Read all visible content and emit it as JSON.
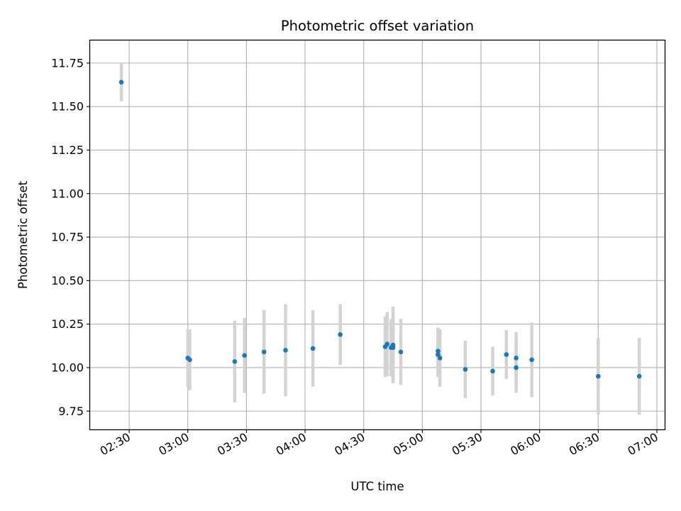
{
  "chart_data": {
    "type": "scatter",
    "title": "Photometric offset variation",
    "xlabel": "UTC time",
    "ylabel": "Photometric offset",
    "x_format": "HH:MM",
    "xlim": [
      "02:10",
      "07:04"
    ],
    "ylim": [
      9.645,
      11.88
    ],
    "x_ticks": [
      "02:30",
      "03:00",
      "03:30",
      "04:00",
      "04:30",
      "05:00",
      "05:30",
      "06:00",
      "06:30",
      "07:00"
    ],
    "y_ticks": [
      "9.75",
      "10.00",
      "10.25",
      "10.50",
      "10.75",
      "11.00",
      "11.25",
      "11.50",
      "11.75"
    ],
    "grid": true,
    "colors": {
      "point": "#1f77b4",
      "errorbar": "#d3d3d3",
      "grid": "#b0b0b0"
    },
    "points": [
      {
        "x": "02:26",
        "y": 11.64,
        "err": 0.11
      },
      {
        "x": "03:00",
        "y": 10.055,
        "err": 0.165
      },
      {
        "x": "03:01",
        "y": 10.045,
        "err": 0.175
      },
      {
        "x": "03:24",
        "y": 10.035,
        "err": 0.235
      },
      {
        "x": "03:29",
        "y": 10.07,
        "err": 0.215
      },
      {
        "x": "03:39",
        "y": 10.09,
        "err": 0.24
      },
      {
        "x": "03:50",
        "y": 10.1,
        "err": 0.265
      },
      {
        "x": "04:04",
        "y": 10.11,
        "err": 0.22
      },
      {
        "x": "04:18",
        "y": 10.19,
        "err": 0.175
      },
      {
        "x": "04:41",
        "y": 10.12,
        "err": 0.175
      },
      {
        "x": "04:42",
        "y": 10.135,
        "err": 0.185
      },
      {
        "x": "04:44",
        "y": 10.115,
        "err": 0.165
      },
      {
        "x": "04:45",
        "y": 10.13,
        "err": 0.22
      },
      {
        "x": "04:45",
        "y": 10.115,
        "err": 0.19
      },
      {
        "x": "04:49",
        "y": 10.09,
        "err": 0.19
      },
      {
        "x": "05:08",
        "y": 10.095,
        "err": 0.135
      },
      {
        "x": "05:08",
        "y": 10.075,
        "err": 0.13
      },
      {
        "x": "05:09",
        "y": 10.055,
        "err": 0.165
      },
      {
        "x": "05:22",
        "y": 9.99,
        "err": 0.165
      },
      {
        "x": "05:36",
        "y": 9.98,
        "err": 0.14
      },
      {
        "x": "05:43",
        "y": 10.075,
        "err": 0.14
      },
      {
        "x": "05:48",
        "y": 10.055,
        "err": 0.15
      },
      {
        "x": "05:48",
        "y": 10.0,
        "err": 0.145
      },
      {
        "x": "05:56",
        "y": 10.045,
        "err": 0.215
      },
      {
        "x": "06:30",
        "y": 9.95,
        "err": 0.22
      },
      {
        "x": "06:51",
        "y": 9.95,
        "err": 0.22
      }
    ]
  }
}
